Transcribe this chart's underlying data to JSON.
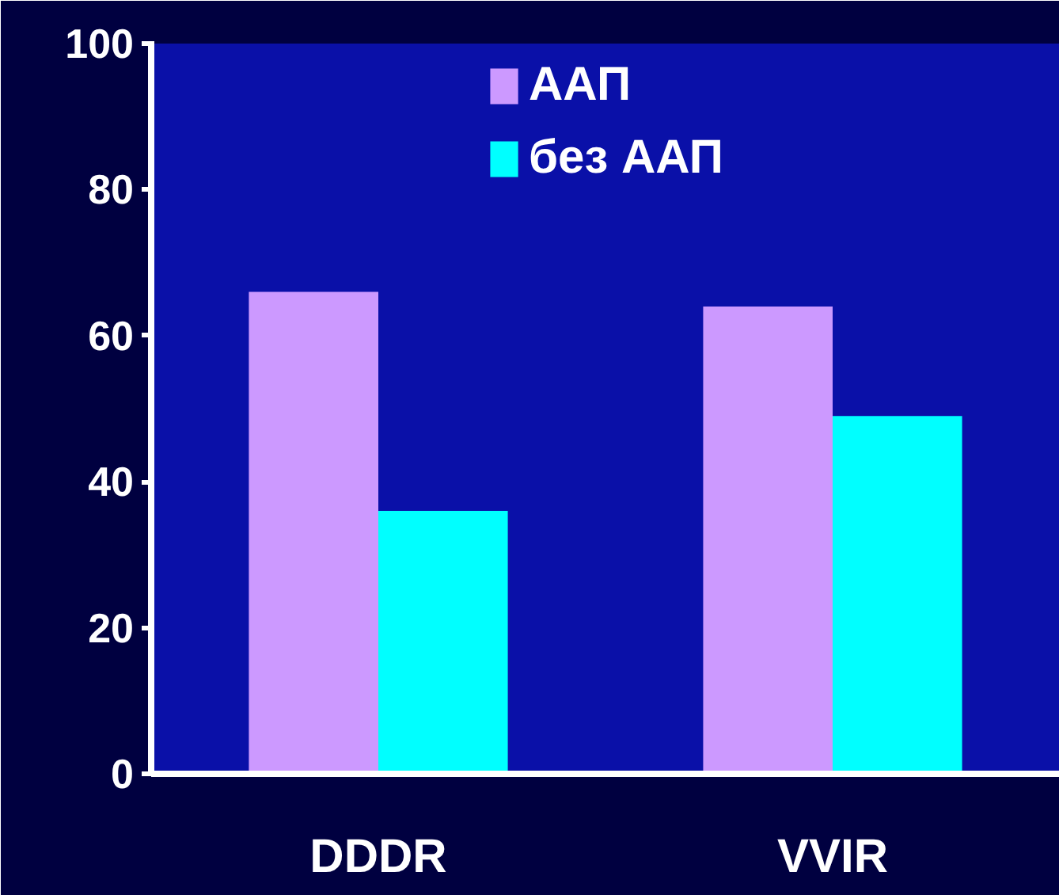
{
  "chart_data": {
    "type": "bar",
    "categories": [
      "DDDR",
      "VVIR"
    ],
    "series": [
      {
        "name": "ААП",
        "color": "#cc99ff",
        "values": [
          66,
          64
        ]
      },
      {
        "name": "без ААП",
        "color": "#00ffff",
        "values": [
          36,
          49
        ]
      }
    ],
    "ylim": [
      0,
      100
    ],
    "yticks": [
      0,
      20,
      40,
      60,
      80,
      100
    ],
    "grid": false,
    "legend": "top"
  }
}
